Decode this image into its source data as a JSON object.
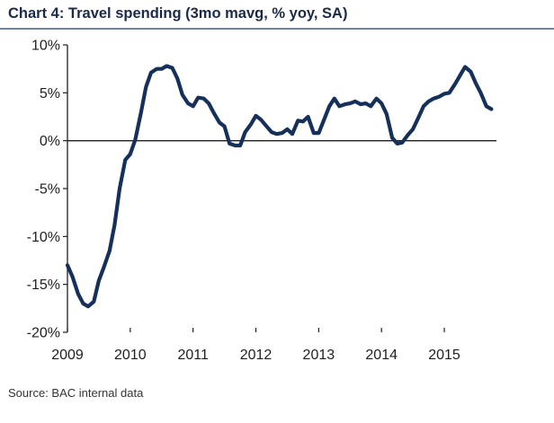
{
  "title": "Chart 4: Travel spending (3mo mavg, % yoy, SA)",
  "source": "Source: BAC internal data",
  "chart_data": {
    "type": "line",
    "title": "Chart 4: Travel spending (3mo mavg, % yoy, SA)",
    "xlabel": "",
    "ylabel": "",
    "xlim": [
      2009.0,
      2015.83
    ],
    "ylim": [
      -20,
      10
    ],
    "y_ticks": [
      10,
      5,
      0,
      -5,
      -10,
      -15,
      -20
    ],
    "y_tick_labels": [
      "10%",
      "5%",
      "0%",
      "-5%",
      "-10%",
      "-15%",
      "-20%"
    ],
    "x_ticks": [
      2009,
      2010,
      2011,
      2012,
      2013,
      2014,
      2015
    ],
    "x_tick_labels": [
      "2009",
      "2010",
      "2011",
      "2012",
      "2013",
      "2014",
      "2015"
    ],
    "grid": false,
    "line_color": "#15305a",
    "series": [
      {
        "x": [
          2009.0,
          2009.08,
          2009.17,
          2009.25,
          2009.33,
          2009.42,
          2009.5,
          2009.58,
          2009.67,
          2009.75,
          2009.83,
          2009.92,
          2010.0,
          2010.08,
          2010.17,
          2010.25,
          2010.33,
          2010.42,
          2010.5,
          2010.58,
          2010.67,
          2010.75,
          2010.83,
          2010.92,
          2011.0,
          2011.08,
          2011.17,
          2011.25,
          2011.33,
          2011.42,
          2011.5,
          2011.58,
          2011.67,
          2011.75,
          2011.83,
          2011.92,
          2012.0,
          2012.08,
          2012.17,
          2012.25,
          2012.33,
          2012.42,
          2012.5,
          2012.58,
          2012.67,
          2012.75,
          2012.83,
          2012.92,
          2013.0,
          2013.08,
          2013.17,
          2013.25,
          2013.33,
          2013.42,
          2013.5,
          2013.58,
          2013.67,
          2013.75,
          2013.83,
          2013.92,
          2014.0,
          2014.08,
          2014.17,
          2014.25,
          2014.33,
          2014.42,
          2014.5,
          2014.58,
          2014.67,
          2014.75,
          2014.83,
          2014.92,
          2015.0,
          2015.08,
          2015.17,
          2015.25,
          2015.33,
          2015.42,
          2015.5,
          2015.58,
          2015.67,
          2015.75
        ],
        "values": [
          -13.0,
          -14.2,
          -16.0,
          -17.0,
          -17.3,
          -16.8,
          -14.6,
          -13.2,
          -11.5,
          -8.8,
          -5.0,
          -2.0,
          -1.4,
          0.1,
          2.9,
          5.6,
          7.1,
          7.5,
          7.5,
          7.8,
          7.6,
          6.5,
          4.8,
          3.9,
          3.6,
          4.5,
          4.4,
          3.9,
          2.9,
          1.9,
          1.5,
          -0.3,
          -0.5,
          -0.5,
          0.9,
          1.7,
          2.6,
          2.2,
          1.5,
          0.9,
          0.7,
          0.8,
          1.2,
          0.7,
          2.1,
          2.0,
          2.5,
          0.8,
          0.8,
          2.1,
          3.6,
          4.4,
          3.6,
          3.8,
          3.9,
          4.1,
          3.8,
          3.9,
          3.6,
          4.4,
          3.9,
          2.8,
          0.3,
          -0.3,
          -0.2,
          0.6,
          1.2,
          2.3,
          3.6,
          4.1,
          4.4,
          4.6,
          4.9,
          5.0,
          5.9,
          6.8,
          7.7,
          7.2,
          6.0,
          5.0,
          3.6,
          3.3
        ]
      }
    ]
  }
}
